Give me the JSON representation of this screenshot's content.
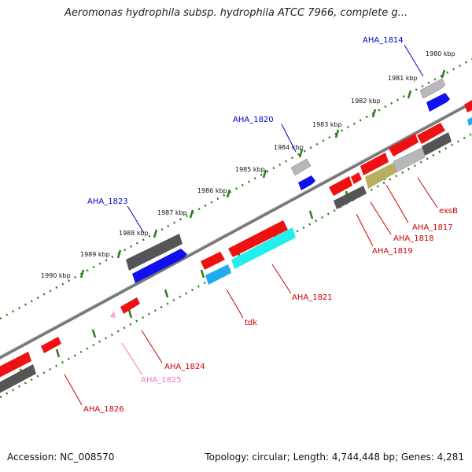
{
  "title": "Aeromonas hydrophila subsp. hydrophila ATCC 7966, complete g...",
  "footer": {
    "accession": "Accession: NC_008570",
    "summary": "Topology: circular; Length: 4,744,448 bp; Genes: 4,281"
  },
  "ticks": [
    "1980 kbp",
    "1981 kbp",
    "1982 kbp",
    "1983 kbp",
    "1984 kbp",
    "1985 kbp",
    "1986 kbp",
    "1987 kbp",
    "1988 kbp",
    "1989 kbp",
    "1990 kbp"
  ],
  "colors": {
    "backbone": "#888888",
    "tick_major": "#2e7d1e",
    "label_forward": "#0000cc",
    "label_reverse": "#cc0000",
    "label_pseudo": "#e87cc0",
    "gene_red": "#ee1111",
    "gene_blue": "#1111ee",
    "gene_gray": "#555555",
    "gene_lightgray": "#b8b8b8",
    "gene_cyan": "#22eeee",
    "gene_olive": "#b8ae60",
    "gene_skyblue": "#22aaee"
  },
  "gene_labels": [
    {
      "name": "AHA_1814",
      "color": "#0000cc"
    },
    {
      "name": "AHA_1820",
      "color": "#0000cc"
    },
    {
      "name": "AHA_1823",
      "color": "#0000cc"
    },
    {
      "name": "exsB",
      "color": "#cc0000"
    },
    {
      "name": "AHA_1817",
      "color": "#cc0000"
    },
    {
      "name": "AHA_1818",
      "color": "#cc0000"
    },
    {
      "name": "AHA_1819",
      "color": "#cc0000"
    },
    {
      "name": "AHA_1821",
      "color": "#cc0000"
    },
    {
      "name": "tdk",
      "color": "#cc0000"
    },
    {
      "name": "AHA_1824",
      "color": "#cc0000"
    },
    {
      "name": "AHA_1825",
      "color": "#e87cc0"
    },
    {
      "name": "AHA_1826",
      "color": "#cc0000"
    }
  ]
}
